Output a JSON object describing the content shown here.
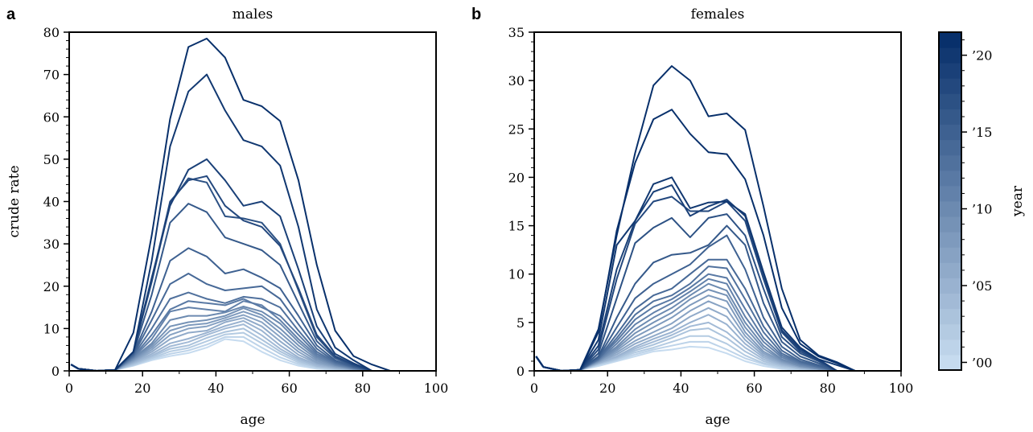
{
  "chart_data": [
    {
      "panel": "a",
      "type": "line",
      "title": "males",
      "xlabel": "age",
      "ylabel": "crude rate",
      "xlim": [
        0,
        100
      ],
      "ylim": [
        0,
        80
      ],
      "xticks": [
        "0",
        "20",
        "40",
        "60",
        "80",
        "100"
      ],
      "yticks": [
        "0",
        "10",
        "20",
        "30",
        "40",
        "50",
        "60",
        "70",
        "80"
      ],
      "x": [
        0.5,
        2.5,
        7.5,
        12.5,
        17.5,
        22.5,
        27.5,
        32.5,
        37.5,
        42.5,
        47.5,
        52.5,
        57.5,
        62.5,
        67.5,
        72.5,
        77.5,
        82.5,
        87.5
      ],
      "series": [
        {
          "year": 2000,
          "values": [
            1.5,
            0.5,
            0,
            0.2,
            1.2,
            2.5,
            3.5,
            4.2,
            5.5,
            7.5,
            7.0,
            4.5,
            2.5,
            1.2,
            0.5,
            0.2,
            0.05,
            0,
            0
          ]
        },
        {
          "year": 2001,
          "values": [
            1.5,
            0.5,
            0,
            0.2,
            1.3,
            2.8,
            4.0,
            4.8,
            6.2,
            8.0,
            8.0,
            5.5,
            3.2,
            1.6,
            0.7,
            0.3,
            0.1,
            0,
            0
          ]
        },
        {
          "year": 2002,
          "values": [
            1.5,
            0.5,
            0,
            0.2,
            1.4,
            3.0,
            4.6,
            5.4,
            7.0,
            8.6,
            9.0,
            6.5,
            4.0,
            2.0,
            0.9,
            0.4,
            0.1,
            0,
            0
          ]
        },
        {
          "year": 2003,
          "values": [
            1.5,
            0.5,
            0,
            0.2,
            1.6,
            3.3,
            5.2,
            6.0,
            7.8,
            9.2,
            10.0,
            7.4,
            4.6,
            2.4,
            1.0,
            0.5,
            0.2,
            0,
            0
          ]
        },
        {
          "year": 2004,
          "values": [
            1.5,
            0.5,
            0,
            0.2,
            1.8,
            3.6,
            5.8,
            6.8,
            8.5,
            10.0,
            11.0,
            8.4,
            5.2,
            2.8,
            1.2,
            0.6,
            0.2,
            0,
            0
          ]
        },
        {
          "year": 2005,
          "values": [
            1.5,
            0.5,
            0,
            0.2,
            2.0,
            4.0,
            6.5,
            7.6,
            9.0,
            10.6,
            11.8,
            9.5,
            6.0,
            3.2,
            1.5,
            0.7,
            0.3,
            0,
            0
          ]
        },
        {
          "year": 2006,
          "values": [
            1.5,
            0.5,
            0,
            0.2,
            2.2,
            4.5,
            7.5,
            9.0,
            9.5,
            11.5,
            12.5,
            10.5,
            7.0,
            3.8,
            1.8,
            0.8,
            0.3,
            0,
            0
          ]
        },
        {
          "year": 2007,
          "values": [
            1.5,
            0.5,
            0,
            0.2,
            2.4,
            5.0,
            8.5,
            10.0,
            10.5,
            12.0,
            13.2,
            11.5,
            8.0,
            4.5,
            2.0,
            1.0,
            0.4,
            0,
            0
          ]
        },
        {
          "year": 2008,
          "values": [
            1.5,
            0.5,
            0,
            0.2,
            2.6,
            5.5,
            9.5,
            10.8,
            11.2,
            12.5,
            14.0,
            12.5,
            9.0,
            5.2,
            2.4,
            1.1,
            0.4,
            0,
            0
          ]
        },
        {
          "year": 2009,
          "values": [
            1.5,
            0.5,
            0,
            0.2,
            2.8,
            6.0,
            10.5,
            11.5,
            12.0,
            13.0,
            14.8,
            13.2,
            10.0,
            6.0,
            2.8,
            1.3,
            0.5,
            0,
            0
          ]
        },
        {
          "year": 2010,
          "values": [
            1.5,
            0.5,
            0,
            0.2,
            3.0,
            6.5,
            12.0,
            13.0,
            13.0,
            13.8,
            15.2,
            14.0,
            11.2,
            6.8,
            3.2,
            1.4,
            0.5,
            0,
            0
          ]
        },
        {
          "year": 2011,
          "values": [
            1.5,
            0.5,
            0,
            0.2,
            3.2,
            7.5,
            14.0,
            15.0,
            14.5,
            14.0,
            16.5,
            15.5,
            12.0,
            7.5,
            3.6,
            1.6,
            0.6,
            0,
            0
          ]
        },
        {
          "year": 2012,
          "values": [
            1.5,
            0.5,
            0,
            0.2,
            3.4,
            8.5,
            14.5,
            16.5,
            16.0,
            15.5,
            17.0,
            15.0,
            13.0,
            8.5,
            4.0,
            1.8,
            0.7,
            0,
            0
          ]
        },
        {
          "year": 2013,
          "values": [
            1.5,
            0.5,
            0,
            0.2,
            3.6,
            10.0,
            17.0,
            18.5,
            17.0,
            16.0,
            17.5,
            17.0,
            15.0,
            9.5,
            4.5,
            2.0,
            0.8,
            0,
            0
          ]
        },
        {
          "year": 2014,
          "values": [
            1.5,
            0.5,
            0,
            0.2,
            3.8,
            12.0,
            20.5,
            23.0,
            20.5,
            19.0,
            19.5,
            20.0,
            17.0,
            11.0,
            5.2,
            2.2,
            0.9,
            0,
            0
          ]
        },
        {
          "year": 2015,
          "values": [
            1.5,
            0.5,
            0,
            0.2,
            4.0,
            14.0,
            26.0,
            29.0,
            27.0,
            23.0,
            24.0,
            22.0,
            19.5,
            13.0,
            6.0,
            2.5,
            1.0,
            0,
            0
          ]
        },
        {
          "year": 2016,
          "values": [
            1.5,
            0.5,
            0,
            0.2,
            4.2,
            18.0,
            35.0,
            39.5,
            37.5,
            31.5,
            30.0,
            28.5,
            25.0,
            16.0,
            7.0,
            3.0,
            1.2,
            0,
            0
          ]
        },
        {
          "year": 2017,
          "values": [
            1.5,
            0.5,
            0,
            0.2,
            4.5,
            21.0,
            39.5,
            45.5,
            44.5,
            36.5,
            36.0,
            35.0,
            30.0,
            19.0,
            8.0,
            3.3,
            1.4,
            0,
            0
          ]
        },
        {
          "year": 2018,
          "values": [
            1.5,
            0.5,
            0,
            0.2,
            4.5,
            21.5,
            40.0,
            45.0,
            46.0,
            39.0,
            35.5,
            34.0,
            29.5,
            19.5,
            8.5,
            3.5,
            1.5,
            0,
            0
          ]
        },
        {
          "year": 2019,
          "values": [
            1.5,
            0.5,
            0,
            0.2,
            4.5,
            22.0,
            39.0,
            47.5,
            50.0,
            45.0,
            39.0,
            40.0,
            36.5,
            24.0,
            10.5,
            4.0,
            1.8,
            0,
            0
          ]
        },
        {
          "year": 2020,
          "values": [
            1.5,
            0.5,
            0,
            0.2,
            4.5,
            26.0,
            53.0,
            66.0,
            70.0,
            61.5,
            54.5,
            53.0,
            48.5,
            34.0,
            14.5,
            5.5,
            2.5,
            0,
            0
          ]
        },
        {
          "year": 2021,
          "values": [
            1.5,
            0.5,
            0,
            0.2,
            9.0,
            32.0,
            59.5,
            76.5,
            78.5,
            74.0,
            64.0,
            62.5,
            59.0,
            45.0,
            25.0,
            9.5,
            3.5,
            1.5,
            0
          ]
        }
      ]
    },
    {
      "panel": "b",
      "type": "line",
      "title": "females",
      "xlabel": "age",
      "ylabel": "",
      "xlim": [
        0,
        100
      ],
      "ylim": [
        0,
        35
      ],
      "xticks": [
        "0",
        "20",
        "40",
        "60",
        "80",
        "100"
      ],
      "yticks": [
        "0",
        "5",
        "10",
        "15",
        "20",
        "25",
        "30",
        "35"
      ],
      "x": [
        0.5,
        2.5,
        7.5,
        12.5,
        17.5,
        22.5,
        27.5,
        32.5,
        37.5,
        42.5,
        47.5,
        52.5,
        57.5,
        62.5,
        67.5,
        72.5,
        77.5,
        82.5,
        87.5
      ],
      "series": [
        {
          "year": 2000,
          "values": [
            1.5,
            0.4,
            0,
            0.1,
            0.5,
            1.0,
            1.5,
            2.0,
            2.2,
            2.5,
            2.4,
            1.8,
            1.0,
            0.5,
            0.2,
            0.1,
            0.05,
            0,
            0
          ]
        },
        {
          "year": 2001,
          "values": [
            1.5,
            0.4,
            0,
            0.1,
            0.6,
            1.1,
            1.7,
            2.2,
            2.6,
            3.0,
            3.0,
            2.2,
            1.3,
            0.7,
            0.3,
            0.1,
            0.05,
            0,
            0
          ]
        },
        {
          "year": 2002,
          "values": [
            1.5,
            0.4,
            0,
            0.1,
            0.7,
            1.2,
            1.9,
            2.4,
            3.0,
            3.6,
            3.6,
            2.8,
            1.6,
            0.8,
            0.4,
            0.2,
            0.1,
            0,
            0
          ]
        },
        {
          "year": 2003,
          "values": [
            1.5,
            0.4,
            0,
            0.1,
            0.7,
            1.3,
            2.1,
            2.7,
            3.4,
            4.2,
            4.4,
            3.4,
            2.0,
            1.0,
            0.5,
            0.2,
            0.1,
            0,
            0
          ]
        },
        {
          "year": 2004,
          "values": [
            1.5,
            0.4,
            0,
            0.1,
            0.8,
            1.4,
            2.3,
            3.0,
            3.7,
            4.6,
            5.0,
            4.0,
            2.4,
            1.2,
            0.6,
            0.3,
            0.1,
            0,
            0
          ]
        },
        {
          "year": 2005,
          "values": [
            1.5,
            0.4,
            0,
            0.1,
            0.8,
            1.5,
            2.5,
            3.3,
            4.0,
            5.0,
            5.8,
            4.8,
            2.8,
            1.4,
            0.7,
            0.3,
            0.1,
            0,
            0
          ]
        },
        {
          "year": 2006,
          "values": [
            1.5,
            0.4,
            0,
            0.1,
            0.9,
            1.7,
            2.8,
            3.6,
            4.4,
            5.6,
            6.5,
            5.6,
            3.2,
            1.6,
            0.8,
            0.4,
            0.2,
            0,
            0
          ]
        },
        {
          "year": 2007,
          "values": [
            1.5,
            0.4,
            0,
            0.1,
            0.9,
            1.9,
            3.1,
            4.0,
            4.9,
            6.2,
            7.2,
            6.4,
            3.6,
            1.8,
            0.9,
            0.4,
            0.2,
            0,
            0
          ]
        },
        {
          "year": 2008,
          "values": [
            1.5,
            0.4,
            0,
            0.1,
            1.0,
            2.1,
            3.5,
            4.5,
            5.5,
            6.8,
            7.8,
            7.2,
            4.0,
            2.0,
            1.0,
            0.5,
            0.2,
            0,
            0
          ]
        },
        {
          "year": 2009,
          "values": [
            1.5,
            0.4,
            0,
            0.1,
            1.0,
            2.3,
            3.9,
            5.0,
            6.0,
            7.4,
            8.4,
            7.8,
            4.5,
            2.3,
            1.1,
            0.5,
            0.2,
            0,
            0
          ]
        },
        {
          "year": 2010,
          "values": [
            1.5,
            0.4,
            0,
            0.1,
            1.1,
            2.5,
            4.3,
            5.5,
            6.5,
            7.8,
            9.0,
            8.3,
            5.0,
            2.6,
            1.2,
            0.6,
            0.3,
            0,
            0
          ]
        },
        {
          "year": 2011,
          "values": [
            1.5,
            0.4,
            0,
            0.1,
            1.1,
            2.8,
            4.8,
            6.0,
            7.0,
            8.2,
            9.5,
            9.0,
            5.6,
            3.0,
            1.4,
            0.7,
            0.3,
            0,
            0
          ]
        },
        {
          "year": 2012,
          "values": [
            1.5,
            0.4,
            0,
            0.1,
            1.2,
            3.1,
            5.3,
            6.6,
            7.4,
            8.6,
            10.0,
            9.6,
            6.4,
            3.4,
            1.6,
            0.8,
            0.4,
            0,
            0
          ]
        },
        {
          "year": 2013,
          "values": [
            1.5,
            0.4,
            0,
            0.1,
            1.2,
            3.4,
            5.8,
            7.2,
            7.8,
            9.0,
            10.8,
            10.6,
            7.4,
            4.0,
            1.8,
            0.9,
            0.4,
            0,
            0
          ]
        },
        {
          "year": 2014,
          "values": [
            1.5,
            0.4,
            0,
            0.1,
            1.3,
            3.8,
            6.4,
            7.8,
            8.5,
            10.0,
            11.5,
            11.5,
            8.5,
            4.6,
            2.1,
            1.0,
            0.5,
            0,
            0
          ]
        },
        {
          "year": 2015,
          "values": [
            1.5,
            0.4,
            0,
            0.1,
            1.4,
            4.5,
            7.5,
            9.0,
            10.0,
            11.0,
            12.8,
            14.0,
            10.5,
            5.5,
            2.5,
            1.2,
            0.6,
            0,
            0
          ]
        },
        {
          "year": 2016,
          "values": [
            1.5,
            0.4,
            0,
            0.1,
            1.5,
            5.5,
            9.0,
            11.2,
            12.0,
            12.2,
            13.0,
            15.0,
            13.0,
            7.0,
            3.0,
            1.5,
            0.8,
            0,
            0
          ]
        },
        {
          "year": 2017,
          "values": [
            1.5,
            0.4,
            0,
            0.1,
            1.8,
            7.5,
            13.2,
            14.8,
            15.8,
            13.8,
            15.8,
            16.2,
            14.0,
            8.5,
            3.5,
            1.8,
            1.0,
            0,
            0
          ]
        },
        {
          "year": 2018,
          "values": [
            1.5,
            0.4,
            0,
            0.1,
            2.2,
            9.5,
            15.2,
            17.5,
            18.0,
            16.5,
            16.5,
            17.5,
            15.5,
            9.5,
            4.0,
            2.0,
            1.1,
            0,
            0
          ]
        },
        {
          "year": 2019,
          "values": [
            1.5,
            0.4,
            0,
            0.1,
            2.6,
            10.5,
            15.5,
            18.5,
            19.2,
            16.0,
            17.0,
            17.7,
            16.0,
            10.0,
            4.2,
            2.2,
            1.2,
            0,
            0
          ]
        },
        {
          "year": 2020,
          "values": [
            1.5,
            0.4,
            0,
            0.1,
            3.2,
            13.0,
            15.5,
            19.3,
            20.0,
            16.8,
            17.4,
            17.5,
            16.2,
            10.2,
            4.5,
            2.4,
            1.2,
            0.6,
            0
          ]
        },
        {
          "year": 2021,
          "values": [
            1.5,
            0.4,
            0,
            0.1,
            4.0,
            14.5,
            21.5,
            26.0,
            27.0,
            24.5,
            22.6,
            22.4,
            19.8,
            14.0,
            6.5,
            2.8,
            1.5,
            0.8,
            0
          ]
        },
        {
          "year": 2022,
          "values": [
            1.5,
            0.4,
            0,
            0.1,
            4.3,
            14.0,
            22.5,
            29.5,
            31.5,
            30.0,
            26.3,
            26.6,
            24.9,
            17.0,
            8.5,
            3.2,
            1.6,
            0.9,
            0
          ]
        }
      ]
    }
  ],
  "colorbar": {
    "label": "year",
    "tick_labels": [
      "’00",
      "’05",
      "’10",
      "’15",
      "’20"
    ],
    "tick_years": [
      2000,
      2005,
      2010,
      2015,
      2020
    ],
    "range": [
      2000,
      2021
    ],
    "color_light": "#c6dbef",
    "color_dark": "#08306b"
  },
  "panel_letters": [
    "a",
    "b"
  ]
}
